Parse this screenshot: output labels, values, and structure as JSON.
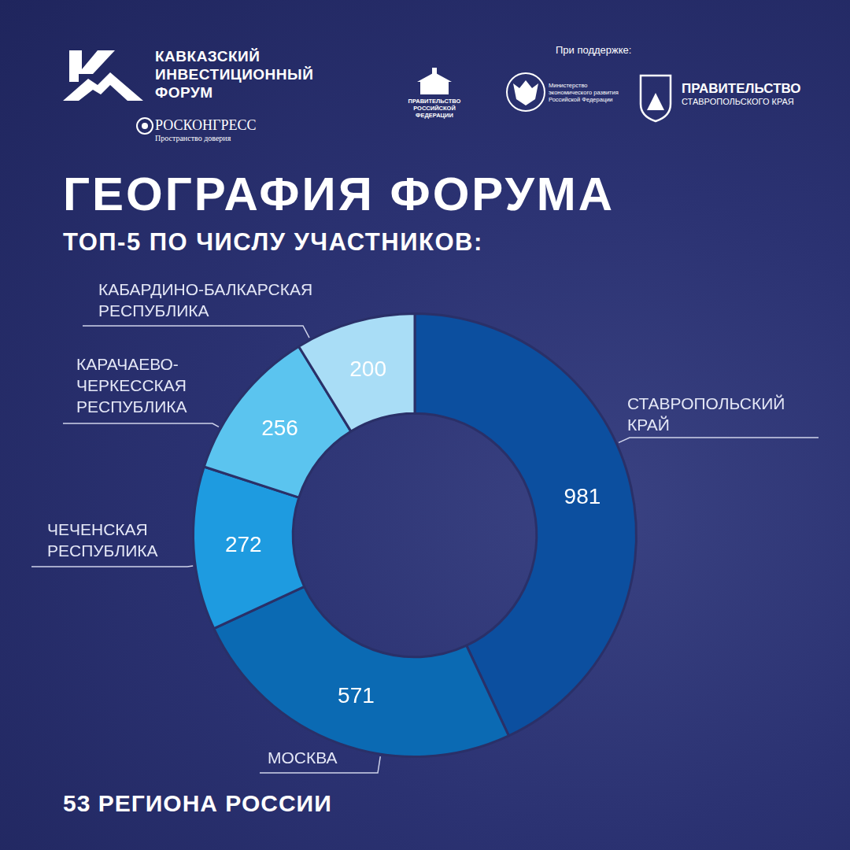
{
  "header": {
    "forum_name": [
      "КАВКАЗСКИЙ",
      "ИНВЕСТИЦИОННЫЙ",
      "ФОРУМ"
    ],
    "organizer": {
      "name": "РОСКОНГРЕСС",
      "slogan": "Пространство доверия"
    },
    "support_label": "При поддержке:",
    "supporters": [
      {
        "lines": [
          "ПРАВИТЕЛЬСТВО",
          "РОССИЙСКОЙ",
          "ФЕДЕРАЦИИ"
        ]
      },
      {
        "lines": [
          "Министерство",
          "экономического развития",
          "Российской Федерации"
        ]
      },
      {
        "lines": [
          "ПРАВИТЕЛЬСТВО",
          "СТАВРОПОЛЬСКОГО КРАЯ"
        ]
      }
    ]
  },
  "chart_data": {
    "type": "doughnut",
    "title": "ГЕОГРАФИЯ ФОРУМА",
    "subtitle": "ТОП-5 ПО ЧИСЛУ УЧАСТНИКОВ:",
    "categories": [
      "СТАВРОПОЛЬСКИЙ КРАЙ",
      "МОСКВА",
      "ЧЕЧЕНСКАЯ РЕСПУБЛИКА",
      "КАРАЧАЕВО-ЧЕРКЕССКАЯ РЕСПУБЛИКА",
      "КАБАРДИНО-БАЛКАРСКАЯ РЕСПУБЛИКА"
    ],
    "values": [
      981,
      571,
      272,
      256,
      200
    ],
    "colors": [
      "#0c4f9f",
      "#0b6ab3",
      "#1e9be0",
      "#5bc4ef",
      "#a9ddf6"
    ],
    "data_labels": true,
    "annotations": [
      "53 РЕГИОНА РОССИИ"
    ]
  }
}
